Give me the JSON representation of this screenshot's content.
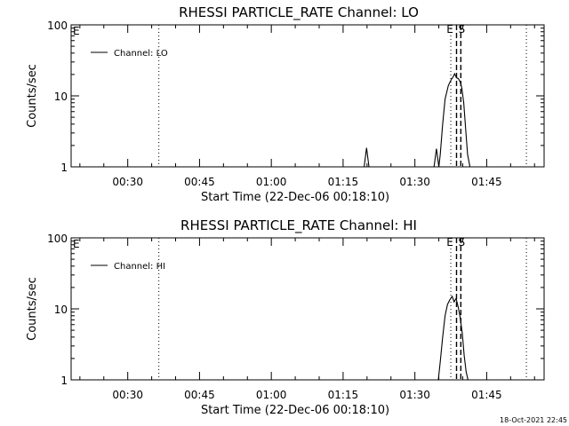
{
  "footer_timestamp": "18-Oct-2021 22:45",
  "chart_data": [
    {
      "type": "line",
      "title": "RHESSI PARTICLE_RATE Channel: LO",
      "xlabel": "Start Time (22-Dec-06 00:18:10)",
      "ylabel": "Counts/sec",
      "y_scale": "log",
      "ylim": [
        1,
        100
      ],
      "y_ticks": [
        {
          "value": 1,
          "label": "1"
        },
        {
          "value": 10,
          "label": "10"
        },
        {
          "value": 100,
          "label": "100"
        }
      ],
      "xlim_minutes": [
        18.17,
        117.0
      ],
      "x_ticks": [
        {
          "value": 30,
          "label": "00:30"
        },
        {
          "value": 45,
          "label": "00:45"
        },
        {
          "value": 60,
          "label": "01:00"
        },
        {
          "value": 75,
          "label": "01:15"
        },
        {
          "value": 90,
          "label": "01:30"
        },
        {
          "value": 105,
          "label": "01:45"
        }
      ],
      "legend": {
        "label": "Channel: LO",
        "position": "top-left"
      },
      "series": [
        {
          "name": "Channel: LO",
          "x": [
            79.4,
            79.9,
            80.4,
            94.0,
            94.5,
            95.0,
            95.3,
            95.8,
            96.3,
            97.0,
            97.6,
            98.0,
            98.3,
            98.7,
            99.1,
            99.5,
            99.8,
            100.2,
            100.6,
            101.0,
            101.5
          ],
          "y": [
            1,
            1.85,
            1,
            1,
            1.8,
            1,
            1.5,
            4.0,
            9.0,
            14.0,
            17.0,
            18.5,
            20.5,
            18.0,
            17.5,
            15.5,
            13.0,
            8.0,
            3.5,
            1.5,
            1
          ]
        }
      ],
      "markers": [
        {
          "label": "",
          "x": 36.5,
          "style": "dotted"
        },
        {
          "label": "E",
          "x": 97.5,
          "style": "dotted"
        },
        {
          "label": "S",
          "x": 99.6,
          "style": "dashed"
        },
        {
          "label": "",
          "x": 98.7,
          "style": "dashed"
        },
        {
          "label": "",
          "x": 113.3,
          "style": "dotted"
        }
      ],
      "corner_label": "E"
    },
    {
      "type": "line",
      "title": "RHESSI PARTICLE_RATE Channel: HI",
      "xlabel": "Start Time (22-Dec-06 00:18:10)",
      "ylabel": "Counts/sec",
      "y_scale": "log",
      "ylim": [
        1,
        100
      ],
      "y_ticks": [
        {
          "value": 1,
          "label": "1"
        },
        {
          "value": 10,
          "label": "10"
        },
        {
          "value": 100,
          "label": "100"
        }
      ],
      "xlim_minutes": [
        18.17,
        117.0
      ],
      "x_ticks": [
        {
          "value": 30,
          "label": "00:30"
        },
        {
          "value": 45,
          "label": "00:45"
        },
        {
          "value": 60,
          "label": "01:00"
        },
        {
          "value": 75,
          "label": "01:15"
        },
        {
          "value": 90,
          "label": "01:30"
        },
        {
          "value": 105,
          "label": "01:45"
        }
      ],
      "legend": {
        "label": "Channel: HI",
        "position": "top-left"
      },
      "series": [
        {
          "name": "Channel: HI",
          "x": [
            94.9,
            95.3,
            95.8,
            96.3,
            96.8,
            97.3,
            97.8,
            98.2,
            98.6,
            99.0,
            99.4,
            99.9,
            100.3,
            100.7,
            101.1
          ],
          "y": [
            1,
            1.8,
            4.0,
            8.0,
            11.5,
            13.5,
            15.0,
            12.5,
            14.0,
            11.0,
            8.0,
            4.5,
            2.2,
            1.3,
            1
          ]
        }
      ],
      "markers": [
        {
          "label": "",
          "x": 36.5,
          "style": "dotted"
        },
        {
          "label": "E",
          "x": 97.5,
          "style": "dotted"
        },
        {
          "label": "S",
          "x": 99.6,
          "style": "dashed"
        },
        {
          "label": "",
          "x": 98.7,
          "style": "dashed"
        },
        {
          "label": "",
          "x": 113.3,
          "style": "dotted"
        }
      ],
      "corner_label": "E"
    }
  ]
}
